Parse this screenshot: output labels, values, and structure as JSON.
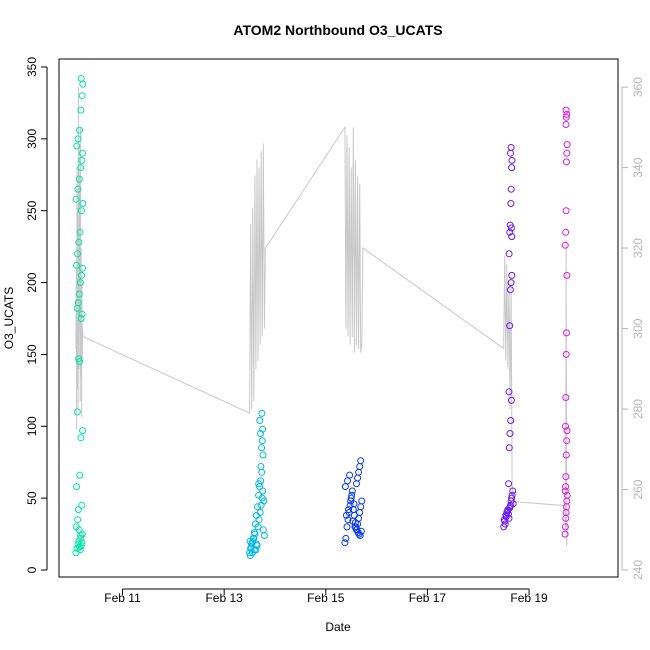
{
  "chart_data": {
    "type": "scatter",
    "title": "ATOM2 Northbound O3_UCATS",
    "xlabel": "Date",
    "ylabel": "O3_UCATS",
    "x_unit": "date",
    "xlim": [
      "2017-02-09T18:00",
      "2017-02-20T18:00"
    ],
    "ylim": [
      0,
      350
    ],
    "y_ticks": [
      0,
      50,
      100,
      150,
      200,
      250,
      300,
      350
    ],
    "x_ticks": [
      {
        "date": "2017-02-11",
        "label": "Feb 11"
      },
      {
        "date": "2017-02-13",
        "label": "Feb 13"
      },
      {
        "date": "2017-02-15",
        "label": "Feb 15"
      },
      {
        "date": "2017-02-17",
        "label": "Feb 17"
      },
      {
        "date": "2017-02-19",
        "label": "Feb 19"
      }
    ],
    "secondary_axis": {
      "side": "right",
      "ylim": [
        240,
        365
      ],
      "ticks": [
        240,
        260,
        280,
        300,
        320,
        340,
        360
      ],
      "color": "#b5b5b5"
    },
    "colors": {
      "flight1": "#00e6a8",
      "flight2": "#00b8e6",
      "flight3": "#0a3cf0",
      "flight4": "#6a1af0",
      "flight5": "#e01ae6",
      "trace": "#c8c8c8"
    },
    "series": [
      {
        "color": "#00e6a8",
        "x": [
          "2017-02-10T02:00",
          "2017-02-10T02:30",
          "2017-02-10T03:00",
          "2017-02-10T03:20",
          "2017-02-10T03:40",
          "2017-02-10T04:00",
          "2017-02-10T04:15",
          "2017-02-10T04:30",
          "2017-02-10T04:45",
          "2017-02-10T05:00",
          "2017-02-10T02:10",
          "2017-02-10T02:50",
          "2017-02-10T03:30",
          "2017-02-10T04:10",
          "2017-02-10T04:50",
          "2017-02-10T02:20",
          "2017-02-10T03:10",
          "2017-02-10T03:50",
          "2017-02-10T04:20",
          "2017-02-10T05:10",
          "2017-02-10T02:40",
          "2017-02-10T03:15",
          "2017-02-10T03:45",
          "2017-02-10T04:25",
          "2017-02-10T04:55",
          "2017-02-10T02:35",
          "2017-02-10T03:05",
          "2017-02-10T03:35",
          "2017-02-10T04:05",
          "2017-02-10T04:40",
          "2017-02-10T05:05",
          "2017-02-10T02:15",
          "2017-02-10T02:45",
          "2017-02-10T03:25",
          "2017-02-10T03:55",
          "2017-02-10T04:35",
          "2017-02-10T05:15",
          "2017-02-10T02:05",
          "2017-02-10T02:55",
          "2017-02-10T03:35",
          "2017-02-10T04:15",
          "2017-02-10T04:45",
          "2017-02-10T05:05",
          "2017-02-10T02:25",
          "2017-02-10T03:00",
          "2017-02-10T03:40",
          "2017-02-10T04:20",
          "2017-02-10T04:55",
          "2017-02-10T05:15",
          "2017-02-10T04:30"
        ],
        "y": [
          12,
          15,
          18,
          20,
          16,
          14,
          22,
          17,
          19,
          25,
          30,
          35,
          28,
          24,
          45,
          58,
          42,
          66,
          92,
          97,
          110,
          147,
          145,
          175,
          178,
          182,
          186,
          192,
          200,
          205,
          210,
          212,
          220,
          228,
          235,
          250,
          255,
          258,
          265,
          272,
          280,
          285,
          290,
          295,
          300,
          306,
          320,
          330,
          338,
          342
        ]
      },
      {
        "color": "#00b8e6",
        "x": [
          "2017-02-13T12:00",
          "2017-02-13T12:30",
          "2017-02-13T13:00",
          "2017-02-13T13:30",
          "2017-02-13T14:00",
          "2017-02-13T14:30",
          "2017-02-13T15:00",
          "2017-02-13T15:30",
          "2017-02-13T16:00",
          "2017-02-13T16:30",
          "2017-02-13T17:00",
          "2017-02-13T17:30",
          "2017-02-13T18:00",
          "2017-02-13T18:30",
          "2017-02-13T19:00",
          "2017-02-13T12:15",
          "2017-02-13T12:45",
          "2017-02-13T13:15",
          "2017-02-13T13:45",
          "2017-02-13T14:15",
          "2017-02-13T14:45",
          "2017-02-13T15:15",
          "2017-02-13T15:45",
          "2017-02-13T16:15",
          "2017-02-13T16:45",
          "2017-02-13T17:15",
          "2017-02-13T17:45",
          "2017-02-13T18:15",
          "2017-02-13T18:45",
          "2017-02-13T12:20",
          "2017-02-13T13:20",
          "2017-02-13T14:20",
          "2017-02-13T15:20",
          "2017-02-13T16:20",
          "2017-02-13T17:20",
          "2017-02-13T18:20",
          "2017-02-13T17:40",
          "2017-02-13T18:00",
          "2017-02-13T17:10",
          "2017-02-13T18:10",
          "2017-02-13T16:50",
          "2017-02-13T17:50"
        ],
        "y": [
          12,
          15,
          18,
          20,
          22,
          25,
          14,
          17,
          30,
          35,
          40,
          45,
          50,
          28,
          24,
          20,
          16,
          19,
          22,
          26,
          32,
          38,
          44,
          52,
          58,
          62,
          68,
          55,
          48,
          10,
          12,
          14,
          18,
          60,
          72,
          80,
          85,
          90,
          95,
          98,
          104,
          109
        ]
      },
      {
        "color": "#0a3cf0",
        "x": [
          "2017-02-15T09:00",
          "2017-02-15T09:30",
          "2017-02-15T10:00",
          "2017-02-15T10:30",
          "2017-02-15T11:00",
          "2017-02-15T11:30",
          "2017-02-15T12:00",
          "2017-02-15T12:30",
          "2017-02-15T13:00",
          "2017-02-15T13:30",
          "2017-02-15T14:00",
          "2017-02-15T14:30",
          "2017-02-15T15:00",
          "2017-02-15T15:30",
          "2017-02-15T16:00",
          "2017-02-15T16:30",
          "2017-02-15T17:00",
          "2017-02-15T09:15",
          "2017-02-15T10:15",
          "2017-02-15T11:15",
          "2017-02-15T12:15",
          "2017-02-15T13:15",
          "2017-02-15T14:15",
          "2017-02-15T15:15",
          "2017-02-15T16:15",
          "2017-02-15T09:45",
          "2017-02-15T10:45",
          "2017-02-15T11:45",
          "2017-02-15T12:45",
          "2017-02-15T13:45",
          "2017-02-15T14:45",
          "2017-02-15T15:45",
          "2017-02-15T16:45",
          "2017-02-15T14:30",
          "2017-02-15T15:00",
          "2017-02-15T15:30",
          "2017-02-15T16:00",
          "2017-02-15T16:30"
        ],
        "y": [
          19,
          22,
          30,
          35,
          40,
          45,
          50,
          55,
          42,
          38,
          33,
          28,
          32,
          36,
          40,
          44,
          48,
          58,
          62,
          66,
          52,
          46,
          30,
          26,
          24,
          38,
          42,
          48,
          34,
          30,
          28,
          25,
          27,
          60,
          64,
          68,
          72,
          76
        ]
      },
      {
        "color": "#6a1af0",
        "x": [
          "2017-02-18T12:00",
          "2017-02-18T12:30",
          "2017-02-18T13:00",
          "2017-02-18T13:30",
          "2017-02-18T14:00",
          "2017-02-18T14:30",
          "2017-02-18T15:00",
          "2017-02-18T15:30",
          "2017-02-18T16:00",
          "2017-02-18T16:30",
          "2017-02-18T12:15",
          "2017-02-18T12:45",
          "2017-02-18T13:15",
          "2017-02-18T13:45",
          "2017-02-18T14:15",
          "2017-02-18T14:45",
          "2017-02-18T15:15",
          "2017-02-18T15:45",
          "2017-02-18T16:15",
          "2017-02-18T14:20",
          "2017-02-18T14:40",
          "2017-02-18T15:00",
          "2017-02-18T15:20",
          "2017-02-18T15:40",
          "2017-02-18T14:30",
          "2017-02-18T14:50",
          "2017-02-18T15:10",
          "2017-02-18T15:30",
          "2017-02-18T15:50",
          "2017-02-18T14:35",
          "2017-02-18T14:55",
          "2017-02-18T15:05",
          "2017-02-18T15:25",
          "2017-02-18T15:35",
          "2017-02-18T15:45",
          "2017-02-18T15:55",
          "2017-02-18T15:15",
          "2017-02-18T15:30",
          "2017-02-18T15:40",
          "2017-02-18T15:50"
        ],
        "y": [
          30,
          34,
          38,
          40,
          42,
          36,
          44,
          48,
          52,
          46,
          35,
          32,
          37,
          41,
          39,
          43,
          45,
          50,
          55,
          60,
          85,
          95,
          104,
          118,
          124,
          170,
          195,
          200,
          205,
          220,
          235,
          240,
          255,
          265,
          280,
          285,
          290,
          294,
          238,
          232
        ]
      },
      {
        "color": "#e01ae6",
        "x": [
          "2017-02-19T17:00",
          "2017-02-19T17:10",
          "2017-02-19T17:20",
          "2017-02-19T17:30",
          "2017-02-19T17:40",
          "2017-02-19T17:50",
          "2017-02-19T18:00",
          "2017-02-19T17:05",
          "2017-02-19T17:15",
          "2017-02-19T17:25",
          "2017-02-19T17:35",
          "2017-02-19T17:45",
          "2017-02-19T17:55",
          "2017-02-19T17:12",
          "2017-02-19T17:22",
          "2017-02-19T17:32",
          "2017-02-19T17:42",
          "2017-02-19T17:52",
          "2017-02-19T17:08",
          "2017-02-19T17:18",
          "2017-02-19T17:28",
          "2017-02-19T17:38",
          "2017-02-19T17:48",
          "2017-02-19T17:58",
          "2017-02-19T17:26",
          "2017-02-19T17:36",
          "2017-02-19T17:46",
          "2017-02-19T17:30"
        ],
        "y": [
          25,
          30,
          36,
          40,
          44,
          48,
          52,
          55,
          58,
          65,
          80,
          90,
          97,
          100,
          120,
          150,
          165,
          205,
          226,
          235,
          250,
          284,
          290,
          296,
          310,
          315,
          317,
          320
        ]
      }
    ],
    "secondary_series": {
      "color": "#c8c8c8",
      "x": [
        "2017-02-10T02:00",
        "2017-02-10T02:10",
        "2017-02-10T02:20",
        "2017-02-10T02:30",
        "2017-02-10T02:40",
        "2017-02-10T02:50",
        "2017-02-10T03:00",
        "2017-02-10T03:10",
        "2017-02-10T03:20",
        "2017-02-10T03:30",
        "2017-02-10T03:40",
        "2017-02-10T03:50",
        "2017-02-10T04:00",
        "2017-02-10T04:10",
        "2017-02-10T04:20",
        "2017-02-10T04:30",
        "2017-02-10T04:40",
        "2017-02-10T04:50",
        "2017-02-10T05:00",
        "2017-02-10T05:10",
        "2017-02-10T05:20",
        "2017-02-13T12:00",
        "2017-02-13T12:30",
        "2017-02-13T13:00",
        "2017-02-13T13:30",
        "2017-02-13T14:00",
        "2017-02-13T14:30",
        "2017-02-13T15:00",
        "2017-02-13T15:30",
        "2017-02-13T16:00",
        "2017-02-13T16:30",
        "2017-02-13T17:00",
        "2017-02-13T17:30",
        "2017-02-13T18:00",
        "2017-02-13T18:30",
        "2017-02-13T19:00",
        "2017-02-13T19:30",
        "2017-02-15T09:00",
        "2017-02-15T09:30",
        "2017-02-15T10:00",
        "2017-02-15T10:30",
        "2017-02-15T11:00",
        "2017-02-15T11:30",
        "2017-02-15T12:00",
        "2017-02-15T12:30",
        "2017-02-15T13:00",
        "2017-02-15T13:30",
        "2017-02-15T14:00",
        "2017-02-15T14:30",
        "2017-02-15T15:00",
        "2017-02-15T15:30",
        "2017-02-15T16:00",
        "2017-02-15T16:30",
        "2017-02-15T17:00",
        "2017-02-15T17:30",
        "2017-02-18T12:00",
        "2017-02-18T12:30",
        "2017-02-18T13:00",
        "2017-02-18T13:30",
        "2017-02-18T14:00",
        "2017-02-18T14:30",
        "2017-02-18T15:00",
        "2017-02-18T15:30",
        "2017-02-18T16:00",
        "2017-02-18T16:30",
        "2017-02-19T17:00",
        "2017-02-19T17:15",
        "2017-02-19T17:30",
        "2017-02-19T17:45",
        "2017-02-19T18:00"
      ],
      "y": [
        295,
        315,
        275,
        340,
        285,
        330,
        280,
        360,
        290,
        345,
        300,
        338,
        282,
        350,
        288,
        320,
        278,
        312,
        292,
        300,
        298,
        279,
        326,
        280,
        330,
        282,
        338,
        290,
        342,
        292,
        340,
        296,
        344,
        298,
        346,
        300,
        320,
        350,
        300,
        348,
        298,
        345,
        296,
        340,
        298,
        350,
        294,
        342,
        296,
        338,
        295,
        336,
        294,
        296,
        320,
        295,
        318,
        292,
        316,
        290,
        312,
        280,
        310,
        262,
        257,
        256,
        250,
        322,
        246,
        252
      ]
    }
  }
}
